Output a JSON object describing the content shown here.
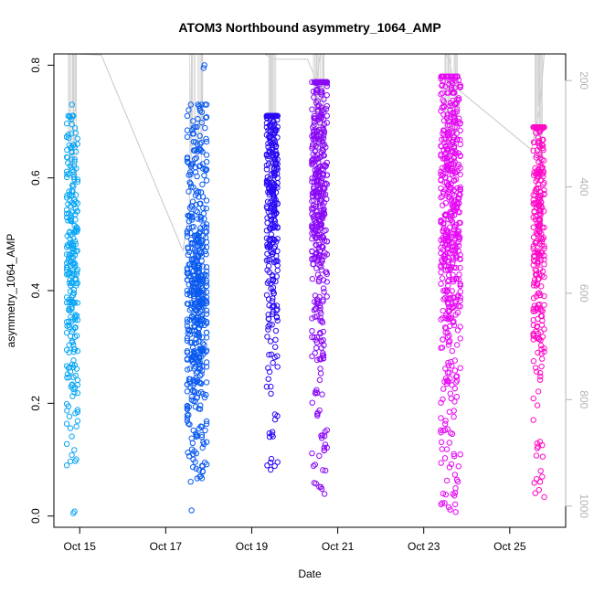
{
  "chart_data": {
    "type": "scatter",
    "title": "ATOM3 Northbound asymmetry_1064_AMP",
    "xlabel": "Date",
    "ylabel": "asymmetry_1064_AMP",
    "x_ticks": [
      "Oct 15",
      "Oct 17",
      "Oct 19",
      "Oct 21",
      "Oct 23",
      "Oct 25"
    ],
    "x_tick_days": [
      15,
      17,
      19,
      21,
      23,
      25
    ],
    "xlim_days": [
      14.4,
      26.3
    ],
    "ylim": [
      -0.02,
      0.82
    ],
    "y_ticks": [
      0.0,
      0.2,
      0.4,
      0.6,
      0.8
    ],
    "y2_ticks": [
      200,
      400,
      600,
      800,
      1000
    ],
    "y2lim": [
      1040,
      150
    ],
    "y2_axis_color": "#b3b3b3",
    "marker": "open-circle",
    "series": [
      {
        "color": "#0aa6f5",
        "day_start": 14.7,
        "day_end": 14.95,
        "n": 260,
        "y_min": 0.09,
        "y_max": 0.71,
        "y_mode": 0.45,
        "outliers": [
          [
            14.85,
            0.005
          ],
          [
            14.88,
            0.008
          ],
          [
            14.82,
            0.73
          ]
        ]
      },
      {
        "color": "#0a5af0",
        "day_start": 17.5,
        "day_end": 17.95,
        "n": 520,
        "y_min": 0.05,
        "y_max": 0.73,
        "y_mode": 0.42,
        "outliers": [
          [
            17.6,
            0.01
          ],
          [
            17.9,
            0.8
          ],
          [
            17.88,
            0.795
          ]
        ]
      },
      {
        "color": "#2a0af5",
        "day_start": 19.35,
        "day_end": 19.6,
        "n": 330,
        "y_min": 0.08,
        "y_max": 0.71,
        "y_mode": 0.6
      },
      {
        "color": "#8a0af5",
        "day_start": 20.4,
        "day_end": 20.75,
        "n": 460,
        "y_min": 0.03,
        "y_max": 0.77,
        "y_mode": 0.62
      },
      {
        "color": "#e60af5",
        "day_start": 23.4,
        "day_end": 23.85,
        "n": 520,
        "y_min": 0.005,
        "y_max": 0.78,
        "y_mode": 0.55
      },
      {
        "color": "#ff0ac8",
        "day_start": 25.55,
        "day_end": 25.8,
        "n": 300,
        "y_min": 0.03,
        "y_max": 0.69,
        "y_mode": 0.55
      }
    ],
    "altitude_line": {
      "color": "#c8c8c8",
      "points": [
        [
          14.9,
          150
        ],
        [
          15.5,
          152
        ],
        [
          17.4,
          520
        ],
        [
          17.55,
          440
        ],
        [
          17.6,
          150
        ],
        [
          19.3,
          150
        ],
        [
          19.5,
          160
        ],
        [
          20.3,
          160
        ],
        [
          20.5,
          200
        ],
        [
          20.6,
          150
        ],
        [
          23.5,
          150
        ],
        [
          23.6,
          160
        ],
        [
          23.7,
          210
        ],
        [
          25.5,
          330
        ],
        [
          25.7,
          250
        ],
        [
          25.8,
          150
        ]
      ]
    },
    "vertical_line_clusters": [
      [
        14.7,
        14.95
      ],
      [
        17.5,
        17.95
      ],
      [
        19.35,
        19.6
      ],
      [
        20.4,
        20.75
      ],
      [
        23.4,
        23.85
      ],
      [
        25.55,
        25.8
      ]
    ],
    "grid": false,
    "legend": "none"
  }
}
